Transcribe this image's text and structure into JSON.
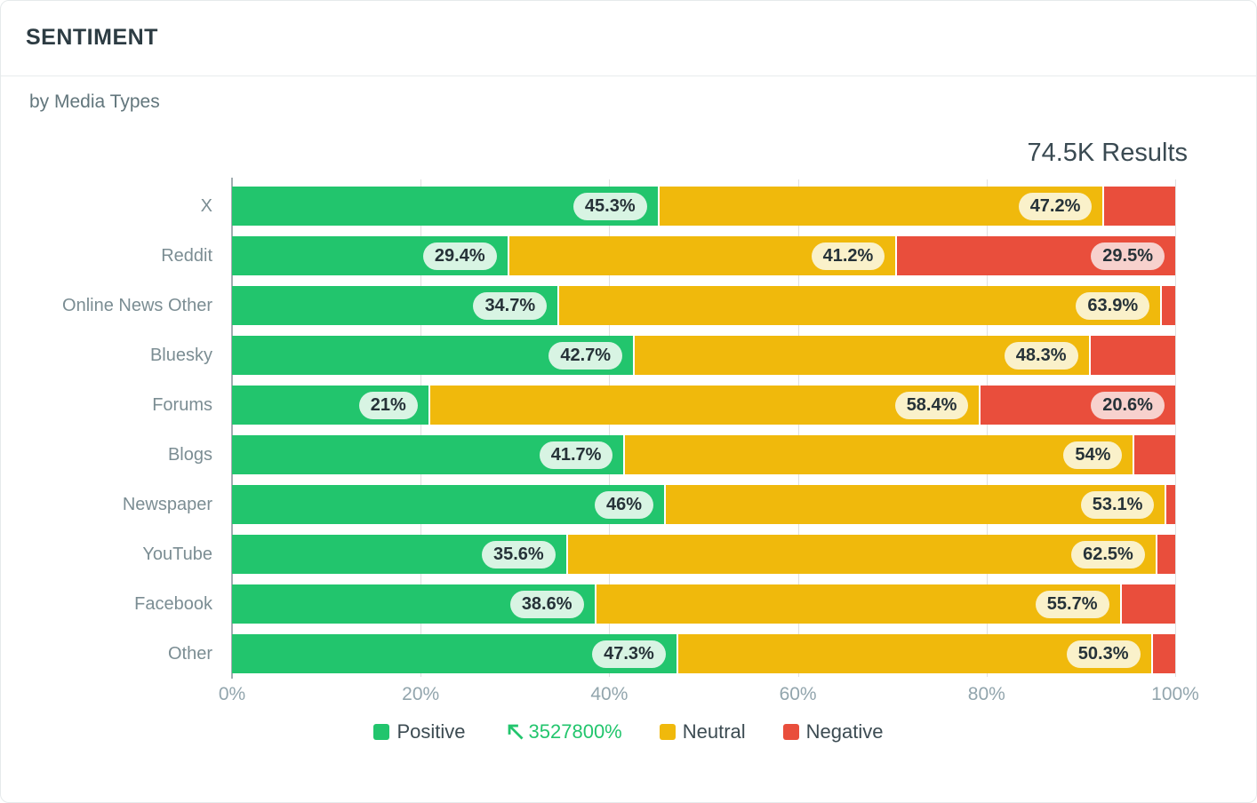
{
  "header": {
    "title": "SENTIMENT",
    "subtitle": "by Media Types",
    "results": "74.5K Results"
  },
  "colors": {
    "positive": "#22c56d",
    "neutral": "#f0b90c",
    "negative": "#e94e3c",
    "positive_pill_bg": "#d8f4e3",
    "neutral_pill_bg": "#faf1ca",
    "negative_pill_bg": "#f7d1cd",
    "pill_text": "#263238"
  },
  "chart_data": {
    "type": "bar",
    "orientation": "horizontal",
    "stacked": true,
    "unit": "%",
    "title": "SENTIMENT by Media Types",
    "xlabel": "",
    "ylabel": "",
    "xlim": [
      0,
      100
    ],
    "x_ticks": [
      "0%",
      "20%",
      "40%",
      "60%",
      "80%",
      "100%"
    ],
    "x_tick_values": [
      0,
      20,
      40,
      60,
      80,
      100
    ],
    "grid": true,
    "legend_position": "bottom",
    "categories": [
      "X",
      "Reddit",
      "Online News Other",
      "Bluesky",
      "Forums",
      "Blogs",
      "Newspaper",
      "YouTube",
      "Facebook",
      "Other"
    ],
    "series": [
      {
        "name": "Positive",
        "values": [
          45.3,
          29.4,
          34.7,
          42.7,
          21,
          41.7,
          46,
          35.6,
          38.6,
          47.3
        ],
        "labels": [
          "45.3%",
          "29.4%",
          "34.7%",
          "42.7%",
          "21%",
          "41.7%",
          "46%",
          "35.6%",
          "38.6%",
          "47.3%"
        ]
      },
      {
        "name": "Neutral",
        "values": [
          47.2,
          41.2,
          63.9,
          48.3,
          58.4,
          54,
          53.1,
          62.5,
          55.7,
          50.3
        ],
        "labels": [
          "47.2%",
          "41.2%",
          "63.9%",
          "48.3%",
          "58.4%",
          "54%",
          "53.1%",
          "62.5%",
          "55.7%",
          "50.3%"
        ]
      },
      {
        "name": "Negative",
        "values": [
          7.5,
          29.5,
          1.4,
          9,
          20.6,
          4.3,
          0.9,
          1.9,
          5.7,
          2.4
        ],
        "labels": [
          "",
          "29.5%",
          "",
          "",
          "20.6%",
          "",
          "",
          "",
          "",
          ""
        ]
      }
    ]
  },
  "legend": {
    "positive_label": "Positive",
    "change_value": "3527800%",
    "neutral_label": "Neutral",
    "negative_label": "Negative"
  }
}
